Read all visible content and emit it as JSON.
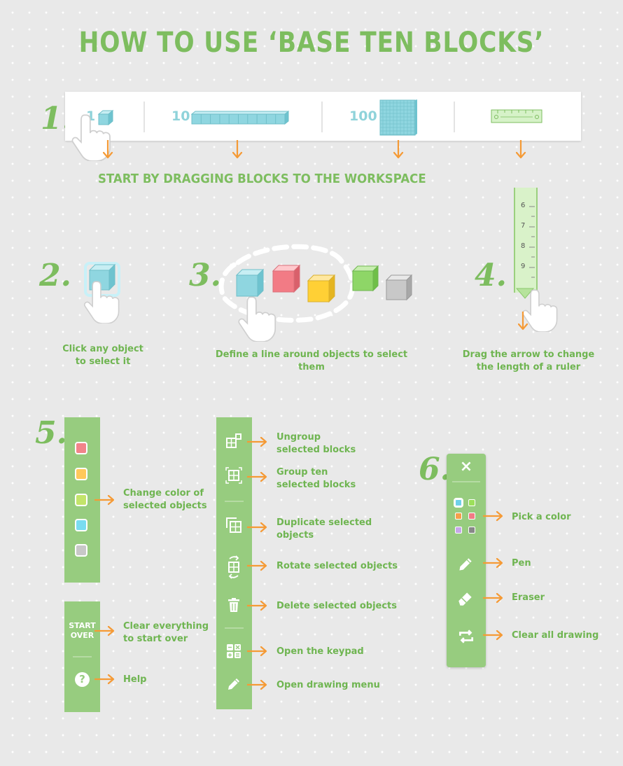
{
  "title": "HOW TO USE ‘BASE TEN BLOCKS’",
  "steps": {
    "s1": "1.",
    "s2": "2.",
    "s3": "3.",
    "s4": "4.",
    "s5": "5.",
    "s6": "6."
  },
  "toolbar": {
    "one": "1",
    "ten": "10",
    "hundred": "100"
  },
  "step1_caption": "START BY DRAGGING BLOCKS TO THE WORKSPACE",
  "step2_caption": [
    "Click any object",
    "to select it"
  ],
  "step3_caption": "Define a line around objects to select them",
  "step4_caption": [
    "Drag the arrow to change",
    "the length of a ruler"
  ],
  "ruler_ticks": [
    "6",
    "7",
    "8",
    "9"
  ],
  "color_panel": {
    "label": [
      "Change color of",
      "selected objects"
    ],
    "swatches": [
      "#f2848a",
      "#ffc85b",
      "#c3e46a",
      "#79dcf0",
      "#c8c8c8"
    ]
  },
  "start_panel": {
    "start_over": [
      "START",
      "OVER"
    ],
    "start_label": [
      "Clear everything",
      "to start over"
    ],
    "help_label": "Help",
    "help_icon": "?"
  },
  "tools_panel": [
    {
      "icon": "ungroup-icon",
      "label": [
        "Ungroup",
        "selected blocks"
      ]
    },
    {
      "icon": "group-ten-icon",
      "label": [
        "Group ten",
        "selected blocks"
      ]
    },
    {
      "icon": "duplicate-icon",
      "label": [
        "Duplicate selected",
        "objects"
      ]
    },
    {
      "icon": "rotate-icon",
      "label": [
        "Rotate selected objects"
      ]
    },
    {
      "icon": "trash-icon",
      "label": [
        "Delete selected objects"
      ]
    },
    {
      "icon": "keypad-icon",
      "label": [
        "Open the keypad"
      ]
    },
    {
      "icon": "pencil-icon",
      "label": [
        "Open drawing menu"
      ]
    }
  ],
  "draw_panel": {
    "close": "×",
    "pick": "Pick a color",
    "pen": "Pen",
    "eraser": "Eraser",
    "clear": "Clear all drawing",
    "colors": [
      "#6fd0ea",
      "#9ce05a",
      "#f5a04a",
      "#f27b85",
      "#c7a6ea",
      "#888888"
    ]
  }
}
